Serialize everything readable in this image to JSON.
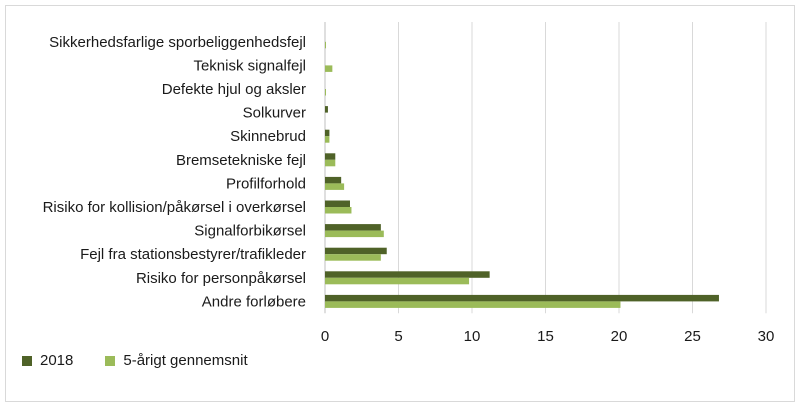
{
  "chart_data": {
    "type": "bar",
    "orientation": "horizontal",
    "categories": [
      "Sikkerhedsfarlige sporbeliggenhedsfejl",
      "Teknisk signalfejl",
      "Defekte hjul og aksler",
      "Solkurver",
      "Skinnebrud",
      "Bremsetekniske fejl",
      "Profilforhold",
      "Risiko for kollision/påkørsel i overkørsel",
      "Signalforbikørsel",
      "Fejl fra stationsbestyrer/trafikleder",
      "Risiko for personpåkørsel",
      "Andre forløbere"
    ],
    "series": [
      {
        "name": "2018",
        "color": "#4f6228",
        "values": [
          0,
          0,
          0,
          0.2,
          0.3,
          0.7,
          1.1,
          1.7,
          3.8,
          4.2,
          11.2,
          26.8
        ]
      },
      {
        "name": "5-årigt gennemsnit",
        "color": "#9bbb59",
        "values": [
          0.05,
          0.5,
          0.05,
          0,
          0.3,
          0.7,
          1.3,
          1.8,
          4.0,
          3.8,
          9.8,
          20.1
        ]
      }
    ],
    "xlim": [
      0,
      30
    ],
    "xticks": [
      "0",
      "5",
      "10",
      "15",
      "20",
      "25",
      "30"
    ],
    "grid": true,
    "legend_position": "bottom-left"
  }
}
